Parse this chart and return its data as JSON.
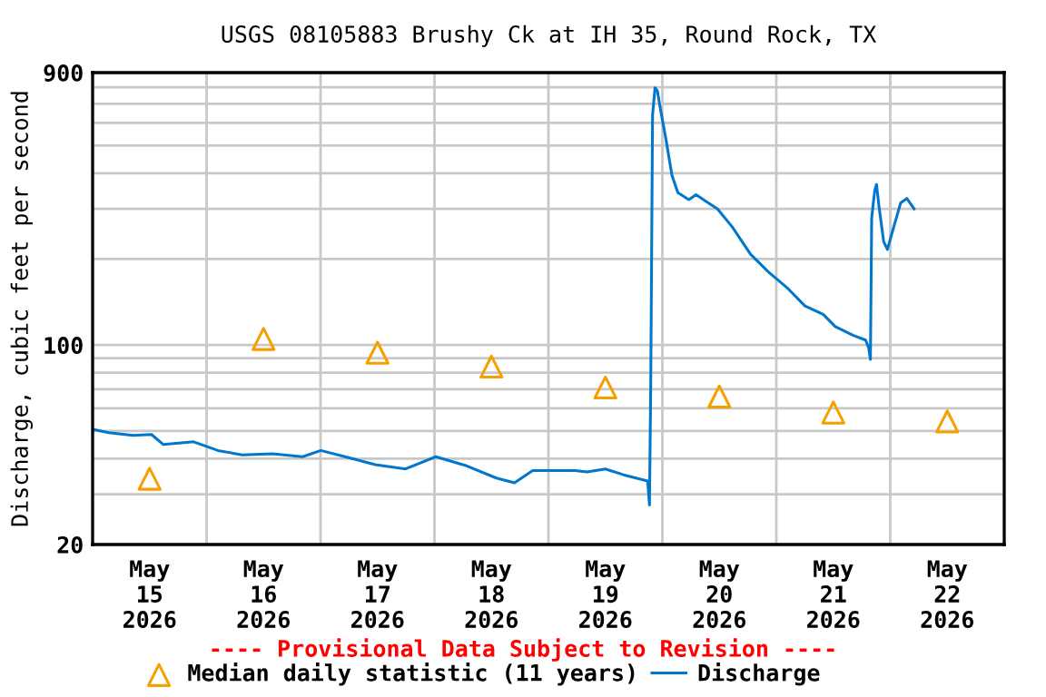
{
  "chart_data": {
    "type": "line",
    "title": "USGS 08105883 Brushy Ck at IH 35, Round Rock, TX",
    "ylabel": "Discharge, cubic feet per second",
    "annotations": [
      "---- Provisional Data Subject to Revision ----"
    ],
    "log": "y",
    "grid": true,
    "legend": "bottom",
    "xlim": [
      "2026-05-15T00:00",
      "2026-05-23T00:00"
    ],
    "xticks": [
      {
        "value": "2026-05-15T12:00",
        "label": "May\n15\n2026"
      },
      {
        "value": "2026-05-16T12:00",
        "label": "May\n16\n2026"
      },
      {
        "value": "2026-05-17T12:00",
        "label": "May\n17\n2026"
      },
      {
        "value": "2026-05-18T12:00",
        "label": "May\n18\n2026"
      },
      {
        "value": "2026-05-19T12:00",
        "label": "May\n19\n2026"
      },
      {
        "value": "2026-05-20T12:00",
        "label": "May\n20\n2026"
      },
      {
        "value": "2026-05-21T12:00",
        "label": "May\n21\n2026"
      },
      {
        "value": "2026-05-22T12:00",
        "label": "May\n22\n2026"
      },
      {
        "value": "2026-05-16T00:00",
        "label": null
      },
      {
        "value": "2026-05-17T00:00",
        "label": null
      },
      {
        "value": "2026-05-18T00:00",
        "label": null
      },
      {
        "value": "2026-05-19T00:00",
        "label": null
      },
      {
        "value": "2026-05-20T00:00",
        "label": null
      },
      {
        "value": "2026-05-21T00:00",
        "label": null
      },
      {
        "value": "2026-05-22T00:00",
        "label": null
      }
    ],
    "ylim": [
      20,
      900
    ],
    "yticks": [
      20,
      100,
      900,
      {
        "value": 30,
        "label": null
      },
      {
        "value": 40,
        "label": null
      },
      {
        "value": 50,
        "label": null
      },
      {
        "value": 60,
        "label": null
      },
      {
        "value": 70,
        "label": null
      },
      {
        "value": 80,
        "label": null
      },
      {
        "value": 90,
        "label": null
      },
      {
        "value": 200,
        "label": null
      },
      {
        "value": 300,
        "label": null
      },
      {
        "value": 400,
        "label": null
      },
      {
        "value": 500,
        "label": null
      },
      {
        "value": 600,
        "label": null
      },
      {
        "value": 700,
        "label": null
      },
      {
        "value": 800,
        "label": null
      }
    ],
    "series": [
      {
        "name": "Median daily statistic (11 years)",
        "type": "scatter",
        "marker": "triangle",
        "color": "#f5a000",
        "x": [
          "2026-05-15T12:00",
          "2026-05-16T12:00",
          "2026-05-17T12:00",
          "2026-05-18T12:00",
          "2026-05-19T12:00",
          "2026-05-20T12:00",
          "2026-05-21T12:00",
          "2026-05-22T12:00"
        ],
        "values": [
          34,
          105,
          94,
          84,
          71,
          66,
          58,
          54
        ]
      },
      {
        "name": "Discharge",
        "color": "#0077cc",
        "x": [
          "2026-05-15T00:15",
          "2026-05-15T03:24",
          "2026-05-15T08:30",
          "2026-05-15T12:24",
          "2026-05-15T14:54",
          "2026-05-15T21:18",
          "2026-05-16T02:24",
          "2026-05-16T07:30",
          "2026-05-16T13:52",
          "2026-05-16T20:14",
          "2026-05-17T00:04",
          "2026-05-17T05:10",
          "2026-05-17T11:32",
          "2026-05-17T17:54",
          "2026-05-18T00:17",
          "2026-05-18T06:40",
          "2026-05-18T13:02",
          "2026-05-18T16:51",
          "2026-05-18T20:41",
          "2026-05-19T05:37",
          "2026-05-19T08:10",
          "2026-05-19T11:59",
          "2026-05-19T15:49",
          "2026-05-19T20:54",
          "2026-05-19T21:17",
          "2026-05-19T21:33",
          "2026-05-19T21:56",
          "2026-05-19T22:27",
          "2026-05-19T22:57",
          "2026-05-19T23:28",
          "2026-05-20T00:45",
          "2026-05-20T02:01",
          "2026-05-20T03:16",
          "2026-05-20T05:34",
          "2026-05-20T07:06",
          "2026-05-20T09:39",
          "2026-05-20T11:34",
          "2026-05-20T14:44",
          "2026-05-20T18:34",
          "2026-05-20T22:23",
          "2026-05-21T02:13",
          "2026-05-21T06:02",
          "2026-05-21T09:52",
          "2026-05-21T12:25",
          "2026-05-21T16:15",
          "2026-05-21T18:48",
          "2026-05-21T19:26",
          "2026-05-21T19:49",
          "2026-05-21T20:05",
          "2026-05-21T20:43",
          "2026-05-21T21:06",
          "2026-05-21T21:36",
          "2026-05-21T22:37",
          "2026-05-21T23:24",
          "2026-05-22T00:33",
          "2026-05-22T02:12",
          "2026-05-22T03:29",
          "2026-05-22T05:01"
        ],
        "values": [
          50.6,
          49.3,
          48.2,
          48.6,
          44.8,
          45.8,
          42.7,
          41.2,
          41.6,
          40.6,
          42.7,
          40.6,
          38.1,
          36.8,
          40.6,
          37.8,
          34.2,
          32.9,
          36.3,
          36.3,
          35.9,
          36.8,
          35.1,
          33.4,
          27.5,
          73,
          640,
          796,
          777,
          689,
          526,
          393,
          342,
          323,
          336,
          315,
          300,
          259,
          208,
          180,
          159,
          137,
          128,
          116,
          108,
          104,
          98,
          89,
          279,
          347,
          365,
          308,
          230,
          216,
          253,
          315,
          326,
          300
        ]
      }
    ]
  }
}
